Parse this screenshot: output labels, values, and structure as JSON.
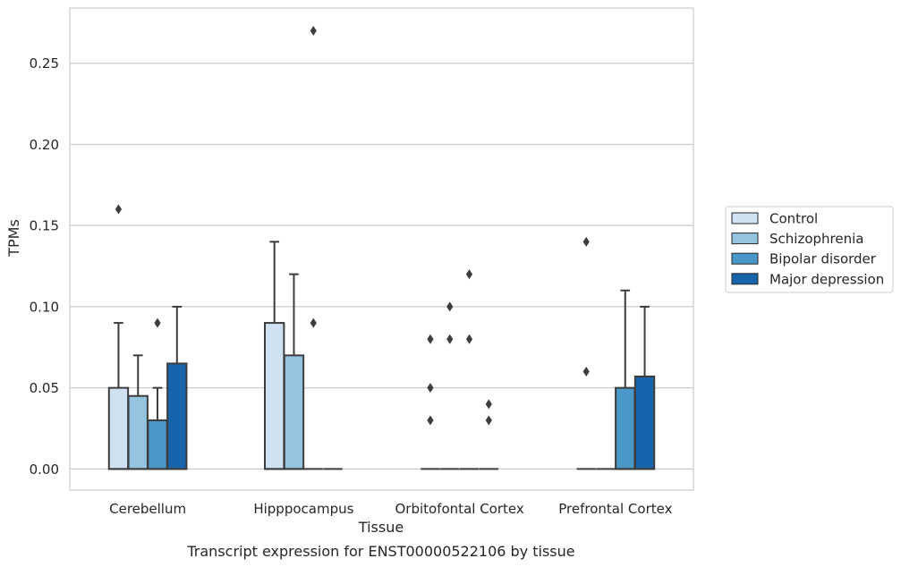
{
  "chart_data": {
    "type": "box",
    "title": "Transcript expression for ENST00000522106 by tissue",
    "xlabel": "Tissue",
    "ylabel": "TPMs",
    "ylim": [
      -0.013,
      0.284
    ],
    "yticks": [
      0.0,
      0.05,
      0.1,
      0.15,
      0.2,
      0.25
    ],
    "ytick_labels": [
      "0.00",
      "0.05",
      "0.10",
      "0.15",
      "0.20",
      "0.25"
    ],
    "categories": [
      "Cerebellum",
      "Hipppocampus",
      "Orbitofontal Cortex",
      "Prefrontal Cortex"
    ],
    "grid": "horizontal",
    "legend_position": "right",
    "series": [
      {
        "name": "Control",
        "color": "#d0e1f2",
        "boxes": [
          {
            "q1": 0.0,
            "q3": 0.05,
            "median": 0.0,
            "whisker_low": 0.0,
            "whisker_high": 0.09,
            "outliers": [
              0.16
            ]
          },
          {
            "q1": 0.0,
            "q3": 0.09,
            "median": 0.0,
            "whisker_low": 0.0,
            "whisker_high": 0.14,
            "outliers": []
          },
          {
            "q1": 0.0,
            "q3": 0.0,
            "median": 0.0,
            "whisker_low": 0.0,
            "whisker_high": 0.0,
            "outliers": [
              0.03,
              0.05,
              0.08
            ]
          },
          {
            "q1": 0.0,
            "q3": 0.0,
            "median": 0.0,
            "whisker_low": 0.0,
            "whisker_high": 0.0,
            "outliers": [
              0.06,
              0.14
            ]
          }
        ]
      },
      {
        "name": "Schizophrenia",
        "color": "#94c4df",
        "boxes": [
          {
            "q1": 0.0,
            "q3": 0.045,
            "median": 0.0,
            "whisker_low": 0.0,
            "whisker_high": 0.07,
            "outliers": []
          },
          {
            "q1": 0.0,
            "q3": 0.07,
            "median": 0.0,
            "whisker_low": 0.0,
            "whisker_high": 0.12,
            "outliers": []
          },
          {
            "q1": 0.0,
            "q3": 0.0,
            "median": 0.0,
            "whisker_low": 0.0,
            "whisker_high": 0.0,
            "outliers": [
              0.08,
              0.1
            ]
          },
          {
            "q1": 0.0,
            "q3": 0.0,
            "median": 0.0,
            "whisker_low": 0.0,
            "whisker_high": 0.0,
            "outliers": []
          }
        ]
      },
      {
        "name": "Bipolar disorder",
        "color": "#4a98c9",
        "boxes": [
          {
            "q1": 0.0,
            "q3": 0.03,
            "median": 0.0,
            "whisker_low": 0.0,
            "whisker_high": 0.05,
            "outliers": [
              0.09
            ]
          },
          {
            "q1": 0.0,
            "q3": 0.0,
            "median": 0.0,
            "whisker_low": 0.0,
            "whisker_high": 0.0,
            "outliers": [
              0.09,
              0.27
            ]
          },
          {
            "q1": 0.0,
            "q3": 0.0,
            "median": 0.0,
            "whisker_low": 0.0,
            "whisker_high": 0.0,
            "outliers": [
              0.08,
              0.12
            ]
          },
          {
            "q1": 0.0,
            "q3": 0.05,
            "median": 0.0,
            "whisker_low": 0.0,
            "whisker_high": 0.11,
            "outliers": []
          }
        ]
      },
      {
        "name": "Major depression",
        "color": "#1764ab",
        "boxes": [
          {
            "q1": 0.0,
            "q3": 0.065,
            "median": 0.0,
            "whisker_low": 0.0,
            "whisker_high": 0.1,
            "outliers": []
          },
          {
            "q1": 0.0,
            "q3": 0.0,
            "median": 0.0,
            "whisker_low": 0.0,
            "whisker_high": 0.0,
            "outliers": []
          },
          {
            "q1": 0.0,
            "q3": 0.0,
            "median": 0.0,
            "whisker_low": 0.0,
            "whisker_high": 0.0,
            "outliers": [
              0.03,
              0.04
            ]
          },
          {
            "q1": 0.0,
            "q3": 0.057,
            "median": 0.0,
            "whisker_low": 0.0,
            "whisker_high": 0.1,
            "outliers": []
          }
        ]
      }
    ]
  }
}
